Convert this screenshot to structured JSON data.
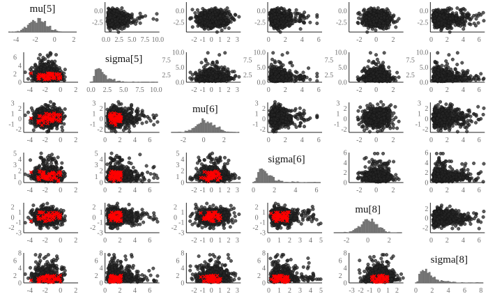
{
  "chart_data": {
    "type": "scatter-matrix",
    "parameters": [
      "mu[5]",
      "sigma[5]",
      "mu[6]",
      "sigma[6]",
      "mu[8]",
      "sigma[8]"
    ],
    "diagonal": "histogram",
    "off_diagonal": "scatter",
    "divergences_shown": "lower-triangle",
    "colors": {
      "points": "#262626",
      "histogram": "#7a7a7a",
      "divergent": "#ff0000"
    },
    "axes": {
      "mu[5]": {
        "x": {
          "default": {
            "lim": [
              -4.8,
              2.3
            ],
            "ticks": [
              "-4",
              "-2",
              "0",
              "2"
            ]
          }
        },
        "y": {
          "default": {
            "lim": [
              -4.6,
              1.9
            ],
            "ticks": [
              "-2.5",
              "0.0"
            ]
          }
        }
      },
      "sigma[5]": {
        "x": {
          "default": {
            "lim": [
              0,
              7.3
            ],
            "ticks": [
              "0",
              "2",
              "4",
              "6"
            ]
          },
          "rows": {
            "0": {
              "lim": [
                -0.2,
                10.3
              ],
              "ticks": [
                "0.0",
                "2.5",
                "5.0",
                "7.5",
                "10.0"
              ]
            },
            "1": {
              "lim": [
                -0.2,
                10.3
              ],
              "ticks": [
                "0.0",
                "2.5",
                "5.0",
                "7.5",
                "10.0"
              ]
            }
          }
        },
        "y": {
          "default": {
            "lim": [
              0,
              10
            ],
            "ticks": [
              "0.0",
              "2.5",
              "5.0",
              "7.5",
              "10.0"
            ]
          },
          "cols": {
            "0": {
              "lim": [
                0,
                7.2
              ],
              "ticks": [
                "0",
                "2",
                "4",
                "6"
              ]
            }
          }
        }
      },
      "mu[6]": {
        "x": {
          "default": {
            "lim": [
              -2.9,
              3.4
            ],
            "ticks": [
              "-2",
              "-1",
              "0",
              "1",
              "2",
              "3"
            ]
          },
          "rows": {
            "2": {
              "lim": [
                -3.2,
                3.5
              ],
              "ticks": [
                "-2",
                "0",
                "2"
              ]
            }
          }
        },
        "y": {
          "default": {
            "lim": [
              -2.6,
              3.1
            ],
            "ticks": [
              "-2",
              "-1",
              "0",
              "1",
              "2",
              "3"
            ]
          }
        }
      },
      "sigma[6]": {
        "x": {
          "default": {
            "lim": [
              -0.1,
              6.4
            ],
            "ticks": [
              "0",
              "2",
              "4",
              "6"
            ]
          },
          "rows": {
            "4": {
              "lim": [
                -0.1,
                5.1
              ],
              "ticks": [
                "0",
                "1",
                "2",
                "3",
                "4",
                "5"
              ]
            },
            "5": {
              "lim": [
                -0.1,
                5.1
              ],
              "ticks": [
                "0",
                "1",
                "2",
                "3",
                "4",
                "5"
              ]
            }
          }
        },
        "y": {
          "default": {
            "lim": [
              0,
              5.1
            ],
            "ticks": [
              "0",
              "1",
              "2",
              "3",
              "4",
              "5"
            ]
          },
          "cols": {
            "4": {
              "lim": [
                0,
                6
              ],
              "ticks": [
                "0",
                "2",
                "4",
                "6"
              ]
            },
            "5": {
              "lim": [
                0,
                6
              ],
              "ticks": [
                "0",
                "2",
                "4",
                "6"
              ]
            }
          }
        }
      },
      "mu[8]": {
        "x": {
          "default": {
            "lim": [
              -3.2,
              3.2
            ],
            "ticks": [
              "-2",
              "0",
              "2"
            ]
          },
          "rows": {
            "5": {
              "lim": [
                -3.3,
                2.7
              ],
              "ticks": [
                "-3",
                "-2",
                "-1",
                "0",
                "1",
                "2"
              ]
            }
          }
        },
        "y": {
          "default": {
            "lim": [
              -3,
              2.8
            ],
            "ticks": [
              "-3",
              "-2",
              "-1",
              "0",
              "1",
              "2"
            ]
          },
          "cols": {
            "5": {
              "lim": [
                -3,
                3.2
              ],
              "ticks": [
                "-2",
                "0",
                "2"
              ]
            }
          }
        }
      },
      "sigma[8]": {
        "x": {
          "default": {
            "lim": [
              -0.1,
              6.7
            ],
            "ticks": [
              "0",
              "2",
              "4",
              "6"
            ]
          },
          "rows": {
            "5": {
              "lim": [
                -0.1,
                8.3
              ],
              "ticks": [
                "0",
                "2",
                "4",
                "6",
                "8"
              ]
            }
          }
        },
        "y": {
          "default": {
            "lim": [
              0,
              8
            ],
            "ticks": [
              "0",
              "2",
              "4",
              "6",
              "8"
            ]
          }
        }
      }
    }
  }
}
